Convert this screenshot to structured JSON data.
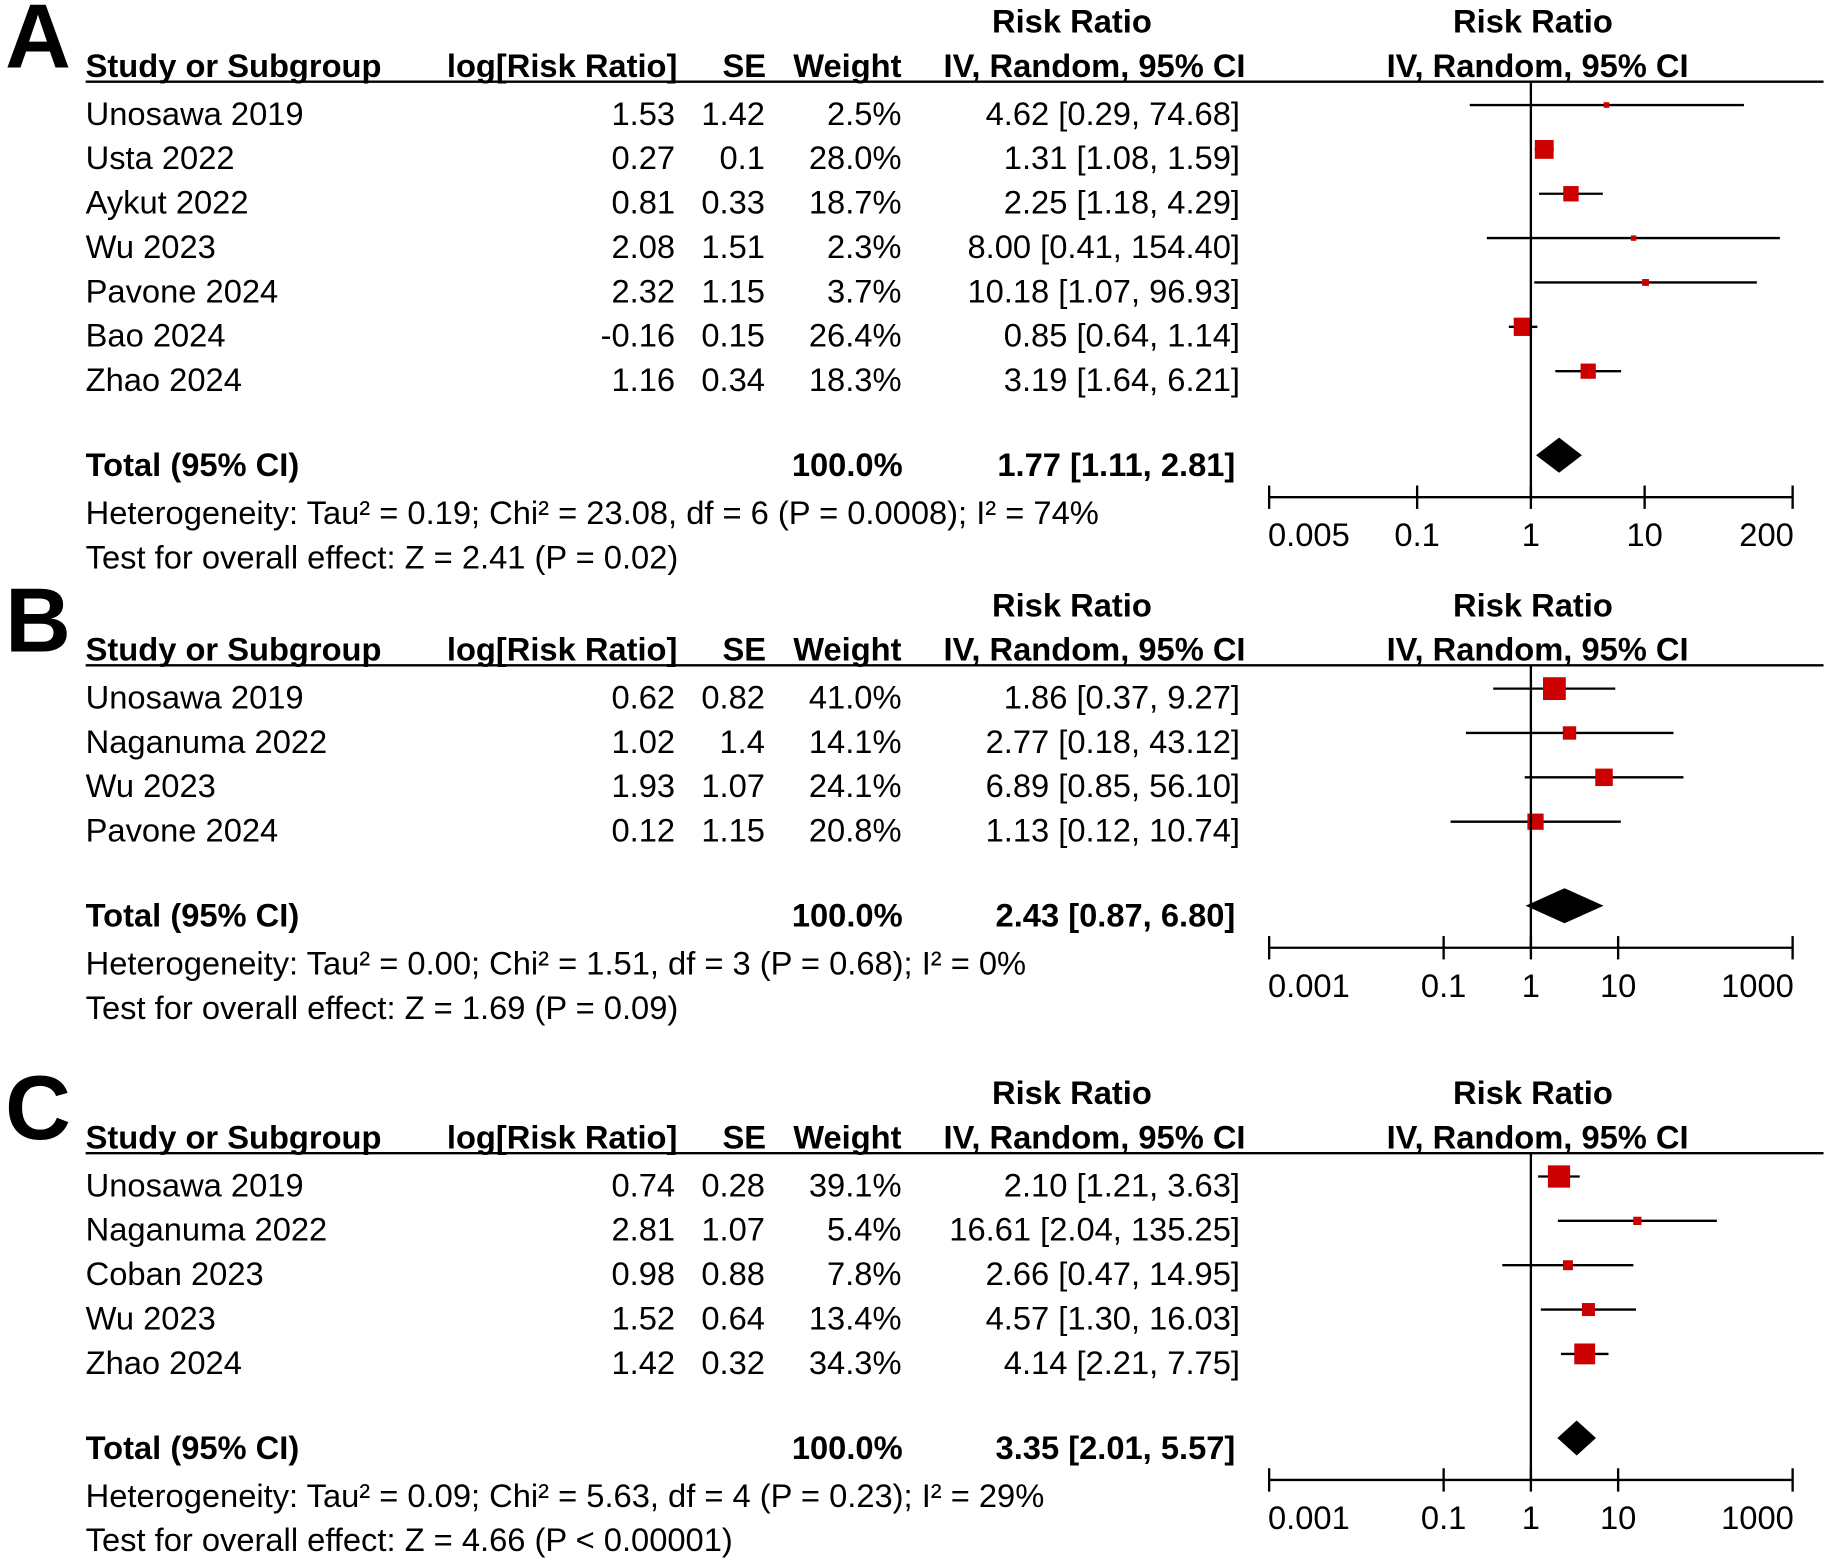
{
  "colors": {
    "marker": "#cc0000",
    "line": "#000000",
    "diamond": "#000000",
    "text": "#000000"
  },
  "chart_data": [
    {
      "type": "forest",
      "panel": "A",
      "header": {
        "group_title": "Risk Ratio",
        "plot_title": "Risk Ratio",
        "study": "Study or Subgroup",
        "log_rr": "log[Risk Ratio]",
        "se": "SE",
        "weight": "Weight",
        "method": "IV, Random, 95% CI",
        "plot_method": "IV, Random, 95% CI"
      },
      "studies": [
        {
          "name": "Unosawa 2019",
          "log_rr": "1.53",
          "se": "1.42",
          "weight": "2.5%",
          "ci_label": "4.62 [0.29, 74.68]",
          "rr": 4.62,
          "lower": 0.29,
          "upper": 74.68
        },
        {
          "name": "Usta 2022",
          "log_rr": "0.27",
          "se": "0.1",
          "weight": "28.0%",
          "ci_label": "1.31 [1.08, 1.59]",
          "rr": 1.31,
          "lower": 1.08,
          "upper": 1.59
        },
        {
          "name": "Aykut 2022",
          "log_rr": "0.81",
          "se": "0.33",
          "weight": "18.7%",
          "ci_label": "2.25 [1.18, 4.29]",
          "rr": 2.25,
          "lower": 1.18,
          "upper": 4.29
        },
        {
          "name": "Wu 2023",
          "log_rr": "2.08",
          "se": "1.51",
          "weight": "2.3%",
          "ci_label": "8.00 [0.41, 154.40]",
          "rr": 8.0,
          "lower": 0.41,
          "upper": 154.4
        },
        {
          "name": "Pavone 2024",
          "log_rr": "2.32",
          "se": "1.15",
          "weight": "3.7%",
          "ci_label": "10.18 [1.07, 96.93]",
          "rr": 10.18,
          "lower": 1.07,
          "upper": 96.93
        },
        {
          "name": "Bao 2024",
          "log_rr": "-0.16",
          "se": "0.15",
          "weight": "26.4%",
          "ci_label": "0.85 [0.64, 1.14]",
          "rr": 0.85,
          "lower": 0.64,
          "upper": 1.14
        },
        {
          "name": "Zhao 2024",
          "log_rr": "1.16",
          "se": "0.34",
          "weight": "18.3%",
          "ci_label": "3.19 [1.64, 6.21]",
          "rr": 3.19,
          "lower": 1.64,
          "upper": 6.21
        }
      ],
      "total": {
        "label": "Total (95% CI)",
        "weight": "100.0%",
        "ci_label": "1.77 [1.11, 2.81]",
        "rr": 1.77,
        "lower": 1.11,
        "upper": 2.81
      },
      "heterogeneity": "Heterogeneity: Tau² = 0.19; Chi² = 23.08, df = 6 (P = 0.0008); I² = 74%",
      "overall_effect": "Test for overall effect: Z = 2.41 (P = 0.02)",
      "xlim": [
        0.005,
        200
      ],
      "reference_line": 1,
      "xticks": [
        {
          "value": 0.005,
          "label": "0.005"
        },
        {
          "value": 0.1,
          "label": "0.1"
        },
        {
          "value": 1,
          "label": "1"
        },
        {
          "value": 10,
          "label": "10"
        },
        {
          "value": 200,
          "label": "200"
        }
      ]
    },
    {
      "type": "forest",
      "panel": "B",
      "header": {
        "group_title": "Risk Ratio",
        "plot_title": "Risk Ratio",
        "study": "Study or Subgroup",
        "log_rr": "log[Risk Ratio]",
        "se": "SE",
        "weight": "Weight",
        "method": "IV, Random, 95% CI",
        "plot_method": "IV, Random, 95% CI"
      },
      "studies": [
        {
          "name": "Unosawa 2019",
          "log_rr": "0.62",
          "se": "0.82",
          "weight": "41.0%",
          "ci_label": "1.86 [0.37, 9.27]",
          "rr": 1.86,
          "lower": 0.37,
          "upper": 9.27
        },
        {
          "name": "Naganuma 2022",
          "log_rr": "1.02",
          "se": "1.4",
          "weight": "14.1%",
          "ci_label": "2.77 [0.18, 43.12]",
          "rr": 2.77,
          "lower": 0.18,
          "upper": 43.12
        },
        {
          "name": "Wu 2023",
          "log_rr": "1.93",
          "se": "1.07",
          "weight": "24.1%",
          "ci_label": "6.89 [0.85, 56.10]",
          "rr": 6.89,
          "lower": 0.85,
          "upper": 56.1
        },
        {
          "name": "Pavone 2024",
          "log_rr": "0.12",
          "se": "1.15",
          "weight": "20.8%",
          "ci_label": "1.13 [0.12, 10.74]",
          "rr": 1.13,
          "lower": 0.12,
          "upper": 10.74
        }
      ],
      "total": {
        "label": "Total (95% CI)",
        "weight": "100.0%",
        "ci_label": "2.43 [0.87, 6.80]",
        "rr": 2.43,
        "lower": 0.87,
        "upper": 6.8
      },
      "heterogeneity": "Heterogeneity: Tau² = 0.00; Chi² = 1.51, df = 3 (P = 0.68); I² = 0%",
      "overall_effect": "Test for overall effect: Z = 1.69 (P = 0.09)",
      "xlim": [
        0.001,
        1000
      ],
      "reference_line": 1,
      "xticks": [
        {
          "value": 0.001,
          "label": "0.001"
        },
        {
          "value": 0.1,
          "label": "0.1"
        },
        {
          "value": 1,
          "label": "1"
        },
        {
          "value": 10,
          "label": "10"
        },
        {
          "value": 1000,
          "label": "1000"
        }
      ]
    },
    {
      "type": "forest",
      "panel": "C",
      "header": {
        "group_title": "Risk Ratio",
        "plot_title": "Risk Ratio",
        "study": "Study or Subgroup",
        "log_rr": "log[Risk Ratio]",
        "se": "SE",
        "weight": "Weight",
        "method": "IV, Random, 95% CI",
        "plot_method": "IV, Random, 95% CI"
      },
      "studies": [
        {
          "name": "Unosawa 2019",
          "log_rr": "0.74",
          "se": "0.28",
          "weight": "39.1%",
          "ci_label": "2.10 [1.21, 3.63]",
          "rr": 2.1,
          "lower": 1.21,
          "upper": 3.63
        },
        {
          "name": "Naganuma 2022",
          "log_rr": "2.81",
          "se": "1.07",
          "weight": "5.4%",
          "ci_label": "16.61 [2.04, 135.25]",
          "rr": 16.61,
          "lower": 2.04,
          "upper": 135.25
        },
        {
          "name": "Coban 2023",
          "log_rr": "0.98",
          "se": "0.88",
          "weight": "7.8%",
          "ci_label": "2.66 [0.47, 14.95]",
          "rr": 2.66,
          "lower": 0.47,
          "upper": 14.95
        },
        {
          "name": "Wu 2023",
          "log_rr": "1.52",
          "se": "0.64",
          "weight": "13.4%",
          "ci_label": "4.57 [1.30, 16.03]",
          "rr": 4.57,
          "lower": 1.3,
          "upper": 16.03
        },
        {
          "name": "Zhao 2024",
          "log_rr": "1.42",
          "se": "0.32",
          "weight": "34.3%",
          "ci_label": "4.14 [2.21, 7.75]",
          "rr": 4.14,
          "lower": 2.21,
          "upper": 7.75
        }
      ],
      "total": {
        "label": "Total (95% CI)",
        "weight": "100.0%",
        "ci_label": "3.35 [2.01, 5.57]",
        "rr": 3.35,
        "lower": 2.01,
        "upper": 5.57
      },
      "heterogeneity": "Heterogeneity: Tau² = 0.09; Chi² = 5.63, df = 4 (P = 0.23); I² = 29%",
      "overall_effect": "Test for overall effect: Z = 4.66 (P < 0.00001)",
      "xlim": [
        0.001,
        1000
      ],
      "reference_line": 1,
      "xticks": [
        {
          "value": 0.001,
          "label": "0.001"
        },
        {
          "value": 0.1,
          "label": "0.1"
        },
        {
          "value": 1,
          "label": "1"
        },
        {
          "value": 10,
          "label": "10"
        },
        {
          "value": 1000,
          "label": "1000"
        }
      ]
    }
  ]
}
